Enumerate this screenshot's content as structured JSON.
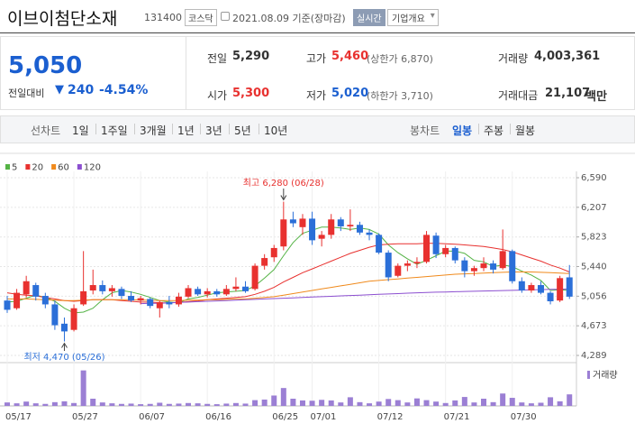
{
  "header": {
    "name": "이브이첨단소재",
    "code": "131400",
    "market": "코스닥",
    "date": "2021.08.09 기준(장마감)",
    "realtime": "실시간",
    "company_info": "기업개요"
  },
  "price": {
    "current": "5,050",
    "change_label": "전일대비",
    "change": "240",
    "change_rate": "-4.54%"
  },
  "summary": [
    {
      "label": "전일",
      "value": "5,290"
    },
    {
      "label": "고가",
      "value": "5,460",
      "note": "(상한가 6,870)"
    },
    {
      "label": "거래량",
      "value": "4,003,361"
    },
    {
      "label": "시가",
      "value": "5,300"
    },
    {
      "label": "저가",
      "value": "5,020",
      "note": "(하한가 3,710)"
    },
    {
      "label": "거래대금",
      "value": "21,107",
      "unit": "백만"
    }
  ],
  "tabs": {
    "line_label": "선차트",
    "line_periods": [
      "1일",
      "1주일",
      "3개월",
      "1년",
      "3년",
      "5년",
      "10년"
    ],
    "candle_label": "봉차트",
    "candle_periods": [
      "일봉",
      "주봉",
      "월봉"
    ],
    "selected_candle_period": 0
  },
  "chart_data": {
    "type": "candlestick",
    "categories": [
      "05/17",
      null,
      null,
      null,
      null,
      null,
      null,
      "05/27",
      null,
      null,
      null,
      null,
      null,
      null,
      "06/07",
      null,
      null,
      null,
      null,
      null,
      null,
      "06/16",
      null,
      null,
      null,
      null,
      null,
      null,
      "06/25",
      null,
      null,
      null,
      "07/01",
      null,
      null,
      null,
      null,
      null,
      null,
      "07/12",
      null,
      null,
      null,
      null,
      null,
      null,
      "07/21",
      null,
      null,
      null,
      null,
      null,
      null,
      "07/30",
      null,
      null,
      null,
      null,
      null,
      null
    ],
    "open": [
      5000,
      4900,
      5080,
      5200,
      5060,
      4950,
      4700,
      4620,
      4950,
      5130,
      5200,
      5120,
      5150,
      5060,
      5000,
      5020,
      4900,
      4980,
      4950,
      5050,
      5150,
      5080,
      5120,
      5080,
      5150,
      5180,
      5150,
      5450,
      5560,
      5700,
      6050,
      5950,
      6060,
      5800,
      5850,
      6050,
      5960,
      5980,
      5880,
      5850,
      5620,
      5320,
      5450,
      5480,
      5500,
      5840,
      5600,
      5680,
      5520,
      5380,
      5420,
      5480,
      5420,
      5640,
      5250,
      5130,
      5200,
      5100,
      5000,
      5300
    ],
    "high": [
      5060,
      5150,
      5320,
      5230,
      5100,
      5000,
      4780,
      4950,
      5640,
      5400,
      5260,
      5200,
      5180,
      5120,
      5060,
      5040,
      5000,
      5060,
      5100,
      5200,
      5180,
      5160,
      5150,
      5200,
      5300,
      5250,
      5480,
      5600,
      5720,
      6280,
      6150,
      6120,
      6150,
      5900,
      6120,
      6080,
      6180,
      6020,
      5920,
      5870,
      5650,
      5480,
      5520,
      5560,
      5900,
      5880,
      5720,
      5700,
      5560,
      5450,
      5560,
      5520,
      5920,
      5660,
      5300,
      5230,
      5250,
      5120,
      5320,
      5460
    ],
    "low": [
      4840,
      4880,
      5040,
      5000,
      4900,
      4620,
      4470,
      4600,
      4930,
      5080,
      5080,
      5050,
      5020,
      4980,
      4950,
      4900,
      4780,
      4900,
      4920,
      5030,
      5060,
      5040,
      5050,
      5060,
      5120,
      5100,
      5130,
      5400,
      5500,
      5650,
      5950,
      5850,
      5720,
      5700,
      5800,
      5900,
      5900,
      5850,
      5780,
      5600,
      5250,
      5300,
      5380,
      5420,
      5480,
      5550,
      5560,
      5480,
      5300,
      5320,
      5380,
      5350,
      5400,
      5220,
      5100,
      5100,
      5080,
      4950,
      4980,
      5020
    ],
    "close": [
      4880,
      5100,
      5250,
      5050,
      4950,
      4680,
      4600,
      4900,
      5120,
      5200,
      5120,
      5160,
      5060,
      5000,
      5030,
      4930,
      4980,
      4950,
      5050,
      5160,
      5080,
      5120,
      5080,
      5150,
      5180,
      5120,
      5450,
      5550,
      5680,
      6050,
      6000,
      6060,
      5780,
      5850,
      6050,
      5960,
      5980,
      5880,
      5850,
      5620,
      5300,
      5450,
      5480,
      5500,
      5850,
      5600,
      5680,
      5520,
      5380,
      5420,
      5480,
      5400,
      5640,
      5250,
      5130,
      5200,
      5100,
      4990,
      5290,
      5050
    ],
    "up_color": "#e8312f",
    "down_color": "#2b6fd8",
    "series": [
      {
        "name": "5",
        "color": "#54b345",
        "values": [
          4980,
          4990,
          5030,
          5070,
          5040,
          4990,
          4900,
          4840,
          4850,
          4900,
          5010,
          5100,
          5130,
          5110,
          5080,
          5040,
          5000,
          4980,
          4970,
          5020,
          5040,
          5070,
          5100,
          5110,
          5120,
          5130,
          5190,
          5290,
          5400,
          5580,
          5750,
          5870,
          5910,
          5950,
          5950,
          5940,
          5920,
          5940,
          5920,
          5860,
          5720,
          5620,
          5540,
          5470,
          5520,
          5580,
          5640,
          5640,
          5610,
          5520,
          5500,
          5440,
          5460,
          5440,
          5380,
          5330,
          5260,
          5130,
          5140,
          5130
        ]
      },
      {
        "name": "20",
        "color": "#e8312f",
        "values": [
          5100,
          5080,
          5070,
          5060,
          5040,
          5020,
          5000,
          4990,
          5000,
          5010,
          5010,
          5010,
          5000,
          4990,
          4980,
          4980,
          4970,
          4970,
          4975,
          4985,
          4995,
          5010,
          5020,
          5030,
          5040,
          5050,
          5080,
          5120,
          5170,
          5240,
          5300,
          5360,
          5410,
          5460,
          5510,
          5560,
          5610,
          5650,
          5690,
          5720,
          5730,
          5735,
          5735,
          5735,
          5740,
          5740,
          5735,
          5730,
          5720,
          5710,
          5700,
          5680,
          5660,
          5630,
          5590,
          5550,
          5510,
          5460,
          5420,
          5370
        ]
      },
      {
        "name": "60",
        "color": "#f08a1c",
        "values": [
          5020,
          5020,
          5020,
          5015,
          5010,
          5005,
          5000,
          5000,
          5005,
          5010,
          5010,
          5010,
          5010,
          5010,
          5005,
          5005,
          5000,
          5000,
          5000,
          5005,
          5005,
          5010,
          5010,
          5015,
          5020,
          5020,
          5030,
          5040,
          5050,
          5070,
          5090,
          5110,
          5130,
          5150,
          5170,
          5190,
          5210,
          5230,
          5250,
          5260,
          5270,
          5280,
          5290,
          5300,
          5310,
          5320,
          5330,
          5340,
          5345,
          5350,
          5355,
          5360,
          5365,
          5370,
          5370,
          5370,
          5365,
          5360,
          5355,
          5350
        ]
      },
      {
        "name": "120",
        "color": "#8c4fd0",
        "values": [
          null,
          null,
          null,
          null,
          null,
          null,
          null,
          null,
          null,
          null,
          null,
          null,
          null,
          null,
          4960,
          4965,
          4965,
          4970,
          4975,
          4980,
          4985,
          4990,
          4995,
          5000,
          5005,
          5010,
          5015,
          5020,
          5025,
          5030,
          5035,
          5040,
          5045,
          5050,
          5055,
          5060,
          5065,
          5070,
          5075,
          5080,
          5085,
          5090,
          5095,
          5100,
          5105,
          5108,
          5111,
          5114,
          5117,
          5120,
          5123,
          5126,
          5129,
          5132,
          5135,
          5138,
          5141,
          5144,
          5147,
          5150
        ]
      }
    ],
    "legend": "top-left",
    "grid": true,
    "ylim": [
      4196,
      6672
    ],
    "yticks": [
      {
        "value": 6590,
        "label": "6,590"
      },
      {
        "value": 6207,
        "label": "6,207"
      },
      {
        "value": 5823,
        "label": "5,823"
      },
      {
        "value": 5440,
        "label": "5,440"
      },
      {
        "value": 5056,
        "label": "5,056"
      },
      {
        "value": 4673,
        "label": "4,673"
      },
      {
        "value": 4289,
        "label": "4,289"
      }
    ],
    "annotations": [
      {
        "kind": "max",
        "text": "최고 6,280 (06/28)"
      },
      {
        "kind": "min",
        "text": "최저 4,470 (05/26)"
      }
    ],
    "volume": {
      "label": "거래량",
      "color": "#9b7fd4",
      "ylim": [
        0,
        12500000
      ],
      "values": [
        1200000,
        900000,
        1500000,
        900000,
        700000,
        1300000,
        1600000,
        1000000,
        12300000,
        2500000,
        1200000,
        900000,
        700000,
        800000,
        600000,
        700000,
        1100000,
        700000,
        800000,
        1000000,
        900000,
        700000,
        600000,
        800000,
        1000000,
        800000,
        2000000,
        2200000,
        3600000,
        6200000,
        2500000,
        1900000,
        1800000,
        2100000,
        1900000,
        1200000,
        3000000,
        1300000,
        900000,
        1500000,
        2400000,
        2000000,
        1200000,
        2600000,
        2000000,
        1500000,
        1000000,
        1900000,
        3100000,
        1200000,
        2500000,
        1300000,
        4300000,
        2800000,
        1200000,
        900000,
        1100000,
        3000000,
        1600000,
        4003361
      ]
    }
  }
}
